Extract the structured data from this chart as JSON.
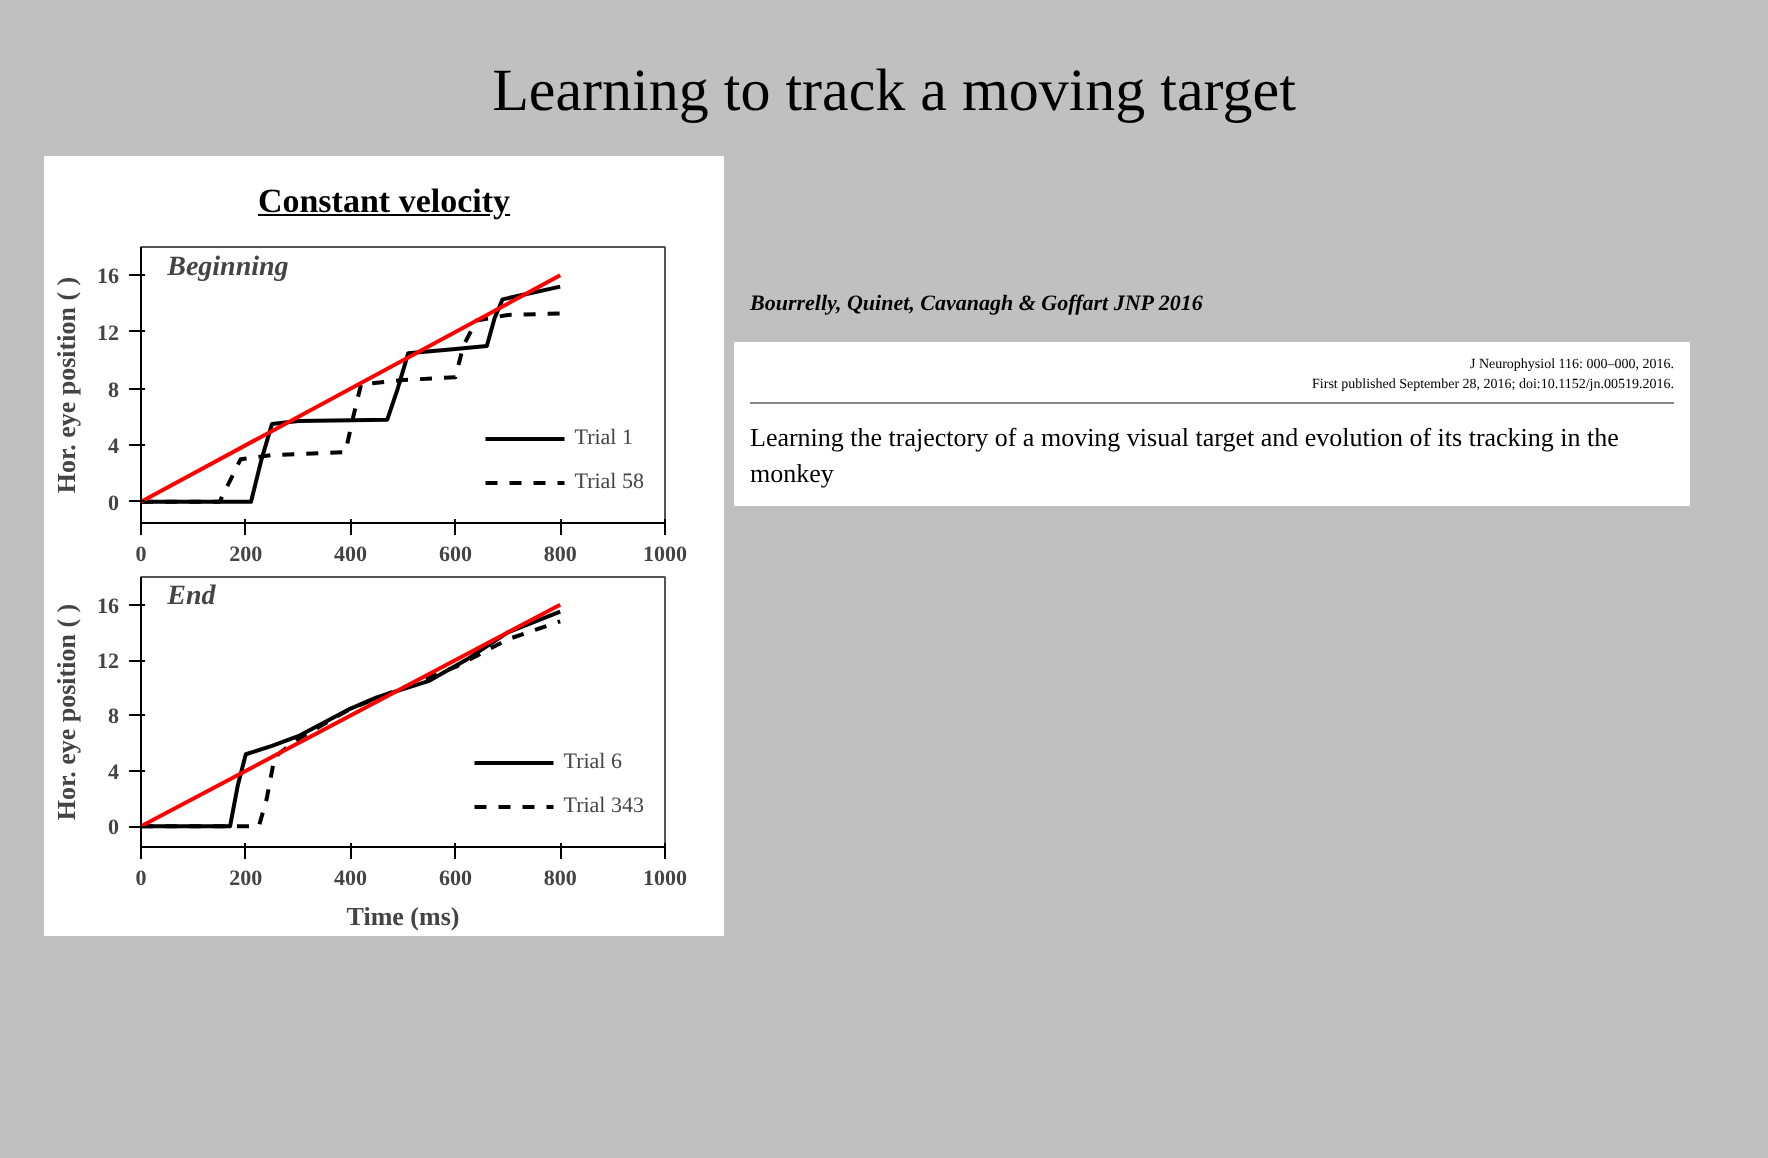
{
  "chart_data": [
    {
      "type": "line",
      "title": "Learning to track a moving target",
      "subtitle": "Constant velocity",
      "ylabel": "Hor. eye position ( )",
      "annotations": [
        "Beginning"
      ],
      "xlim": [
        0,
        1000
      ],
      "ylim": [
        -1.5,
        18
      ],
      "xticks": [
        0,
        200,
        400,
        600,
        800,
        1000
      ],
      "yticks": [
        0,
        4,
        8,
        12,
        16
      ],
      "grid": false,
      "legend": "bottom right",
      "series": [
        {
          "name": "Trial 1",
          "color": "#000000",
          "line_style": "solid",
          "x": [
            0,
            210,
            230,
            250,
            300,
            470,
            490,
            510,
            600,
            660,
            675,
            690,
            800
          ],
          "values": [
            0,
            0,
            3,
            5.5,
            5.7,
            5.8,
            8,
            10.5,
            10.8,
            11,
            13,
            14.3,
            15.2
          ]
        },
        {
          "name": "Trial 58",
          "color": "#000000",
          "line_style": "dashed",
          "x": [
            0,
            150,
            170,
            190,
            250,
            390,
            405,
            420,
            500,
            600,
            615,
            640,
            700,
            800
          ],
          "values": [
            0,
            0,
            1.5,
            3,
            3.3,
            3.5,
            6,
            8.3,
            8.6,
            8.8,
            11,
            12.8,
            13.2,
            13.3
          ]
        },
        {
          "color": "#ff0000",
          "line_style": "solid",
          "x": [
            0,
            800
          ],
          "values": [
            0,
            16
          ]
        }
      ]
    },
    {
      "type": "line",
      "xlabel": "Time (ms)",
      "ylabel": "Hor. eye position ( )",
      "annotations": [
        "End"
      ],
      "xlim": [
        0,
        1000
      ],
      "ylim": [
        -1.5,
        18
      ],
      "xticks": [
        0,
        200,
        400,
        600,
        800,
        1000
      ],
      "yticks": [
        0,
        4,
        8,
        12,
        16
      ],
      "grid": false,
      "legend": "bottom right",
      "series": [
        {
          "name": "Trial 6",
          "color": "#000000",
          "line_style": "solid",
          "x": [
            0,
            170,
            185,
            200,
            250,
            300,
            400,
            450,
            550,
            620,
            700,
            800
          ],
          "values": [
            0,
            0,
            3,
            5.2,
            5.8,
            6.5,
            8.5,
            9.3,
            10.5,
            12,
            14,
            15.5
          ]
        },
        {
          "name": "Trial 343",
          "color": "#000000",
          "line_style": "dashed",
          "x": [
            0,
            225,
            240,
            255,
            300,
            400,
            500,
            600,
            700,
            800
          ],
          "values": [
            0,
            0,
            2,
            5,
            6.3,
            8.5,
            10,
            11.5,
            13.5,
            14.8
          ]
        },
        {
          "color": "#ff0000",
          "line_style": "solid",
          "x": [
            0,
            800
          ],
          "values": [
            0,
            16
          ]
        }
      ]
    },
    {
      "type": "other",
      "title": "Bourrelly, Quinet, Cavanagh & Goffart JNP 2016",
      "annotations": [
        "J Neurophysiol 116: 000–000, 2016.",
        "First published September 28, 2016; doi:10.1152/jn.00519.2016.",
        "Learning the trajectory of a moving visual target and evolution of its tracking in the monkey"
      ]
    }
  ]
}
